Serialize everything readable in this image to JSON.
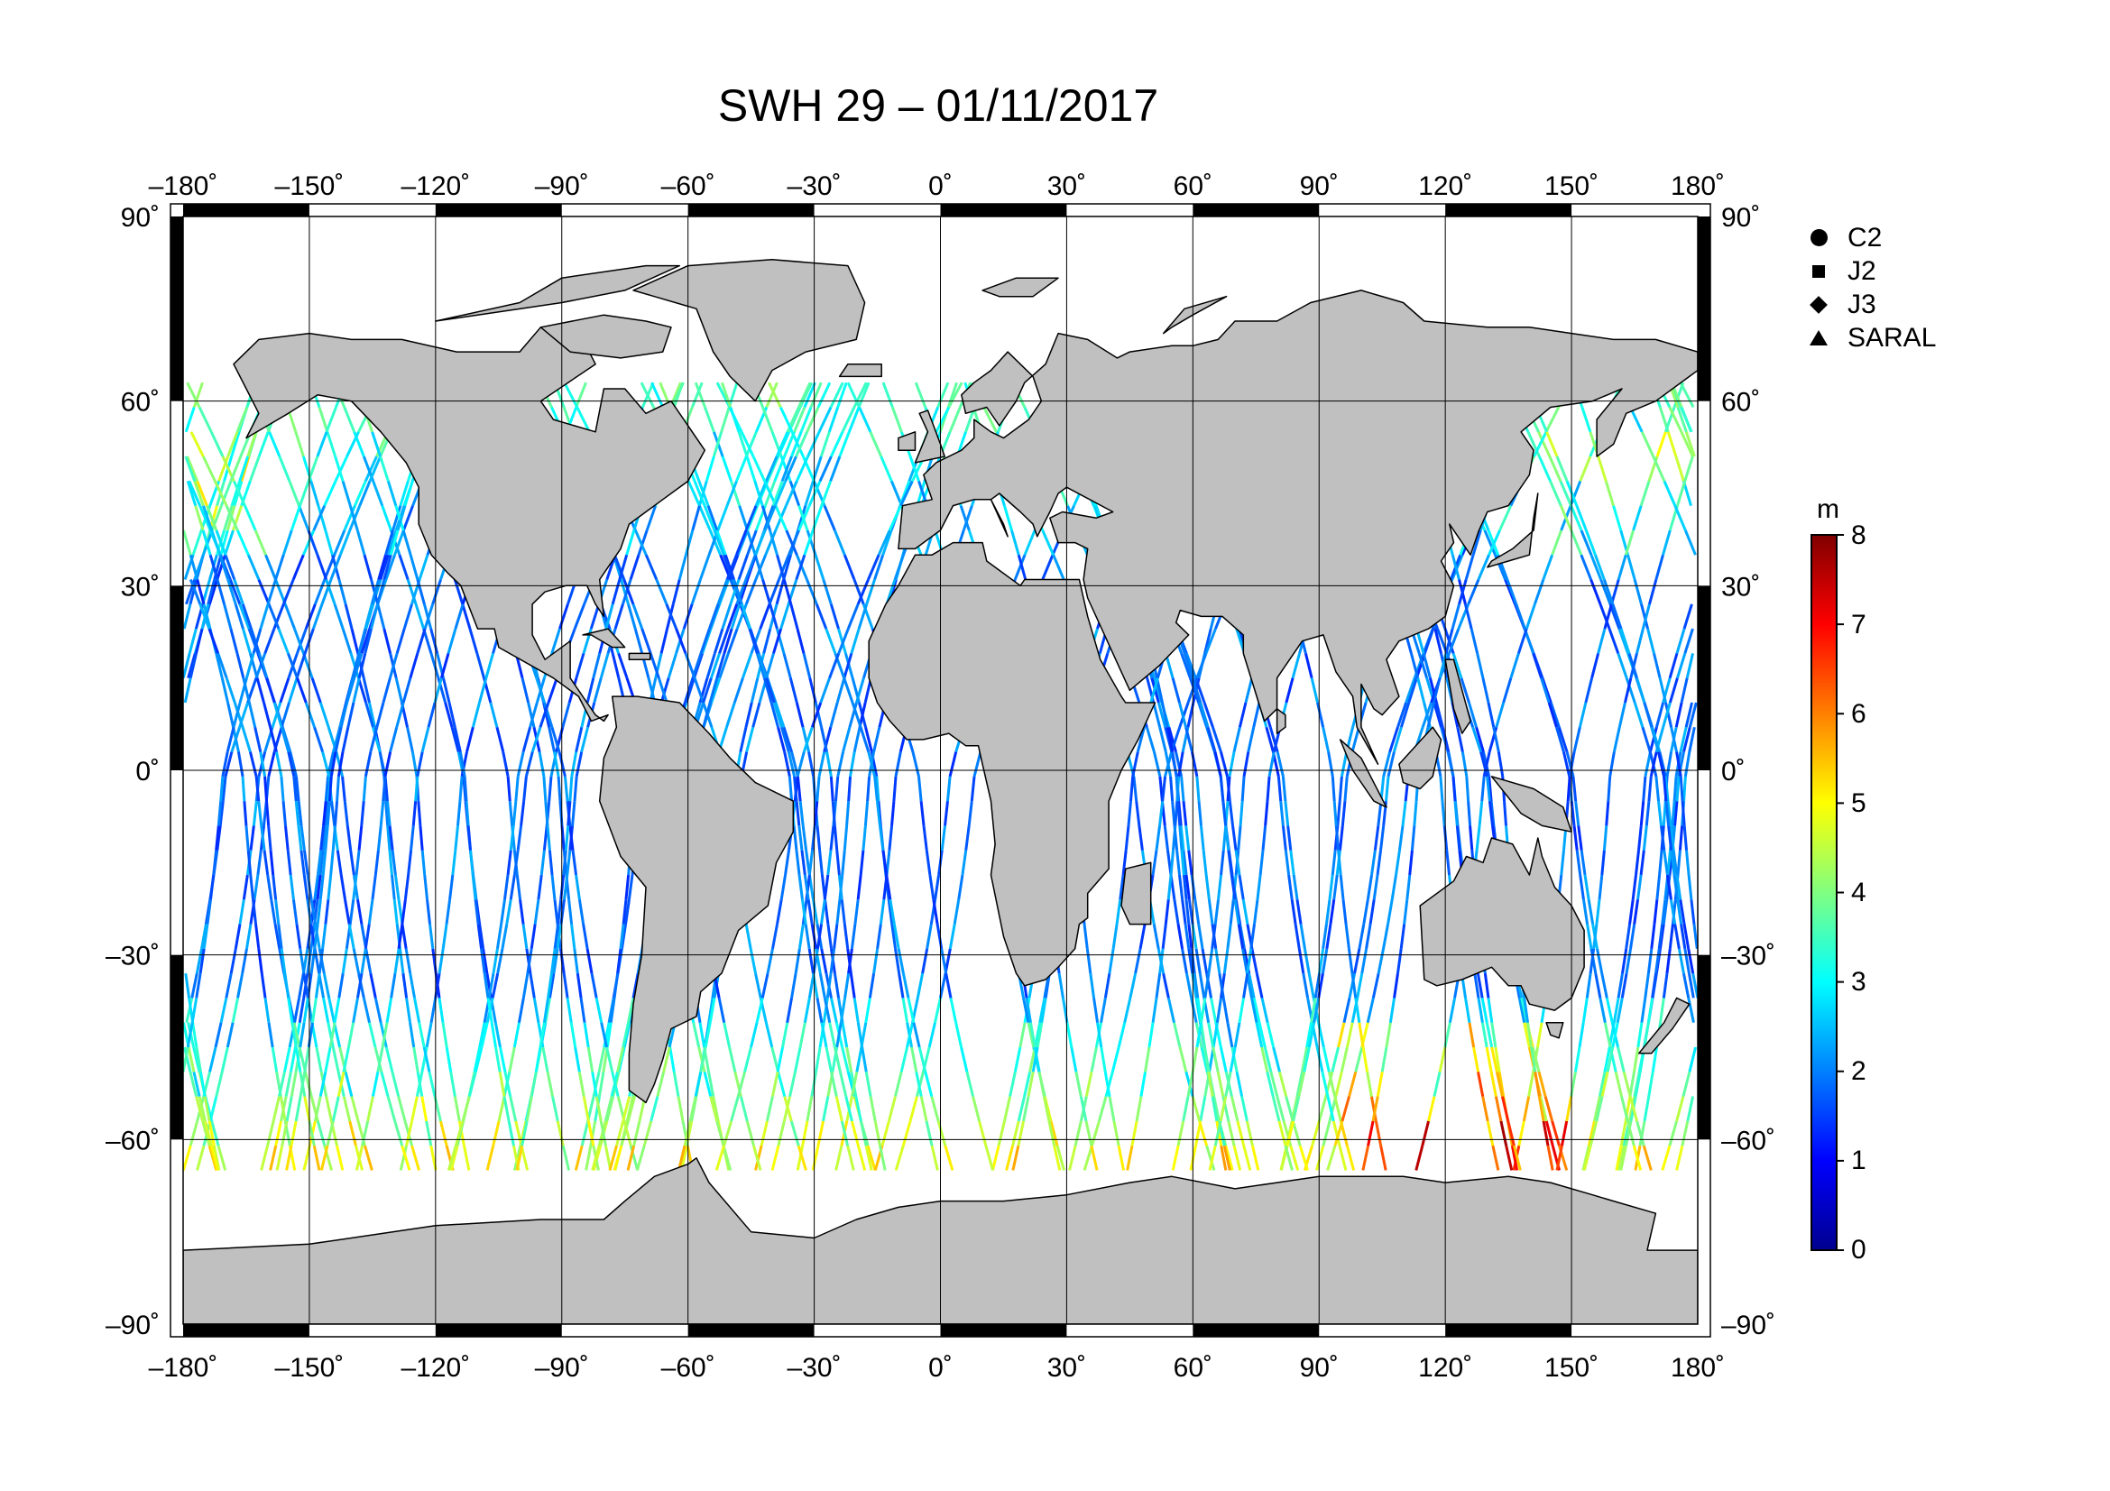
{
  "title": "SWH 29 – 01/11/2017",
  "x_ticks": [
    "–180˚",
    "–150˚",
    "–120˚",
    "–90˚",
    "–60˚",
    "–30˚",
    "0˚",
    "30˚",
    "60˚",
    "90˚",
    "120˚",
    "150˚",
    "180˚"
  ],
  "y_ticks_left": [
    "90˚",
    "60˚",
    "30˚",
    "0˚",
    "–30˚",
    "–60˚",
    "–90˚"
  ],
  "y_ticks_right": [
    "90˚",
    "60˚",
    "30˚",
    "0˚",
    "–30˚",
    "–60˚",
    "–90˚"
  ],
  "legend": [
    {
      "label": "C2",
      "symbol": "circle"
    },
    {
      "label": "J2",
      "symbol": "square"
    },
    {
      "label": "J3",
      "symbol": "diamond"
    },
    {
      "label": "SARAL",
      "symbol": "triangle"
    }
  ],
  "colorbar": {
    "unit": "m",
    "ticks": [
      "8",
      "7",
      "6",
      "5",
      "4",
      "3",
      "2",
      "1",
      "0"
    ],
    "range": [
      0,
      8
    ],
    "colors": [
      "#00008f",
      "#0000ff",
      "#0080ff",
      "#00ffff",
      "#80ff80",
      "#ffff00",
      "#ff8000",
      "#ff0000",
      "#800000"
    ]
  },
  "map": {
    "land_color": "#c0c0c0",
    "ocean_color": "#ffffff",
    "lon_range": [
      -180,
      180
    ],
    "lat_range": [
      -90,
      90
    ],
    "data_lat_range": [
      -65,
      65
    ]
  }
}
